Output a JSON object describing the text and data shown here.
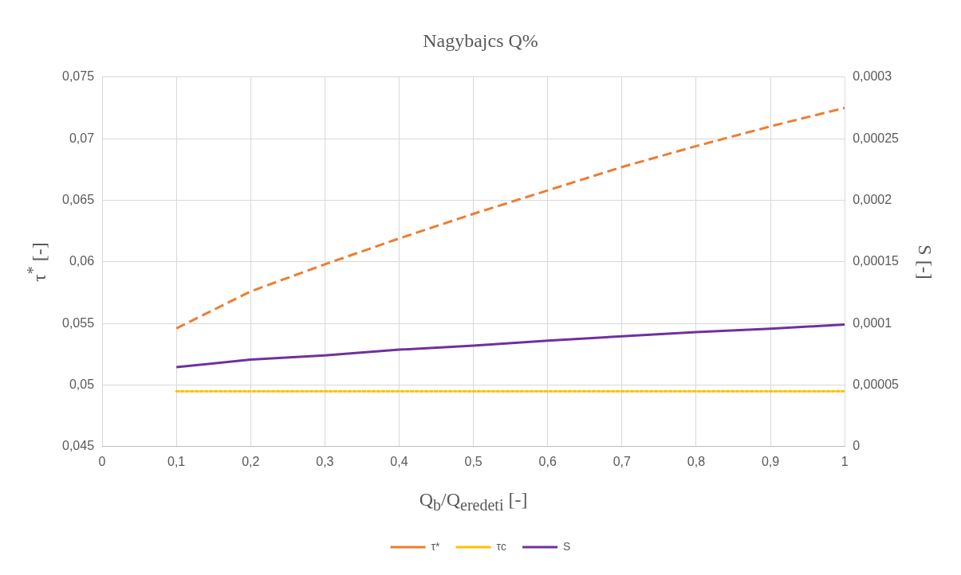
{
  "chart_data": {
    "type": "line",
    "title": "Nagybajcs Q%",
    "xlabel": "Q$_{b}$/Q$_{eredeti}$ [-]",
    "ylabel": "τ$^{*}$ [-]",
    "y2label": "S [-]",
    "x": [
      0.1,
      0.2,
      0.3,
      0.4,
      0.5,
      0.6,
      0.7,
      0.8,
      0.9,
      1
    ],
    "series": [
      {
        "name": "τ*",
        "color": "#ed7d31",
        "line_style": "dashed",
        "values": [
          0.0546,
          0.0576,
          0.0598,
          0.0619,
          0.0639,
          0.0658,
          0.0677,
          0.0694,
          0.071,
          0.0725
        ]
      },
      {
        "name": "τc",
        "color": "#ffc000",
        "line_style": "dotted",
        "values": [
          0.0495,
          0.0495,
          0.0495,
          0.0495,
          0.0495,
          0.0495,
          0.0495,
          0.0495,
          0.0495,
          0.0495
        ]
      },
      {
        "name": "S",
        "color": "#7030a0",
        "line_style": "solid",
        "axis": "y2",
        "values": [
          6.45e-05,
          7.06e-05,
          7.4e-05,
          7.87e-05,
          8.2e-05,
          8.6e-05,
          8.96e-05,
          9.3e-05,
          9.57e-05,
          9.91e-05
        ]
      }
    ],
    "xlim": [
      0,
      1
    ],
    "xticks": [
      0,
      {
        "value": 0.1,
        "label": "0,1"
      },
      {
        "value": 0.2,
        "label": "0,2"
      },
      {
        "value": 0.3,
        "label": "0,3"
      },
      {
        "value": 0.4,
        "label": "0,4"
      },
      {
        "value": 0.5,
        "label": "0,5"
      },
      {
        "value": 0.6,
        "label": "0,6"
      },
      {
        "value": 0.7,
        "label": "0,7"
      },
      {
        "value": 0.8,
        "label": "0,8"
      },
      {
        "value": 0.9,
        "label": "0,9"
      },
      1
    ],
    "ylim": [
      0.045,
      0.075
    ],
    "yticks": [
      {
        "value": 0.045,
        "label": "0,045"
      },
      {
        "value": 0.05,
        "label": "0,05"
      },
      {
        "value": 0.055,
        "label": "0,055"
      },
      {
        "value": 0.06,
        "label": "0,06"
      },
      {
        "value": 0.065,
        "label": "0,065"
      },
      {
        "value": 0.07,
        "label": "0,07"
      },
      {
        "value": 0.075,
        "label": "0,075"
      }
    ],
    "y2lim": [
      0,
      0.0003
    ],
    "y2ticks": [
      0,
      {
        "value": 5e-05,
        "label": "0,00005"
      },
      {
        "value": 0.0001,
        "label": "0,0001"
      },
      {
        "value": 0.00015,
        "label": "0,00015"
      },
      {
        "value": 0.0002,
        "label": "0,0002"
      },
      {
        "value": 0.00025,
        "label": "0,00025"
      },
      {
        "value": 0.0003,
        "label": "0,0003"
      }
    ],
    "grid": true,
    "legend": "bottom",
    "marker": "none"
  }
}
